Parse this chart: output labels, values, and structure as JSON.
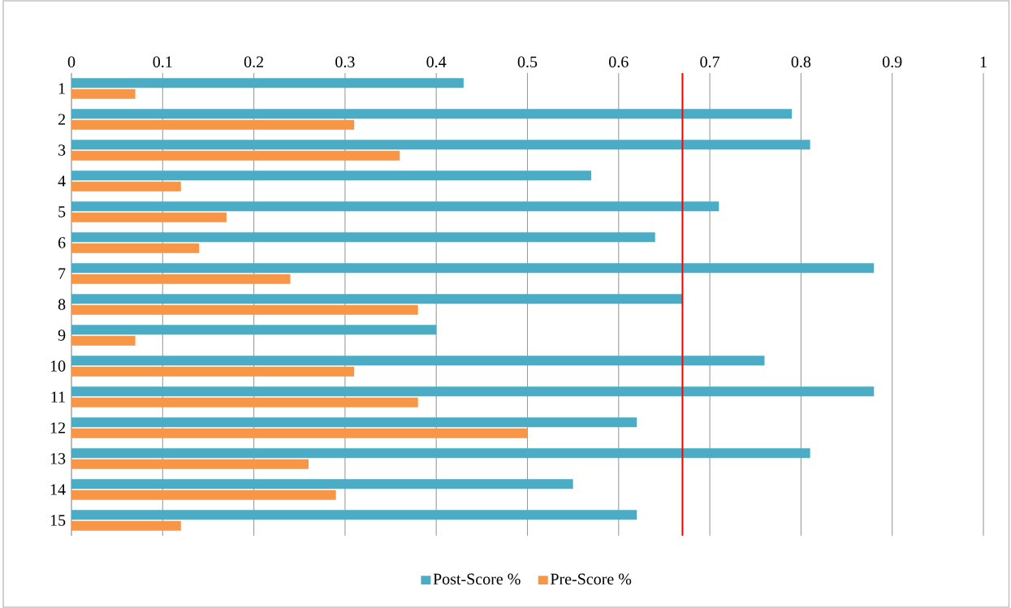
{
  "chart_data": {
    "type": "bar",
    "orientation": "horizontal",
    "categories": [
      "1",
      "2",
      "3",
      "4",
      "5",
      "6",
      "7",
      "8",
      "9",
      "10",
      "11",
      "12",
      "13",
      "14",
      "15"
    ],
    "series": [
      {
        "name": "Post-Score %",
        "color": "#4bacc6",
        "values": [
          0.43,
          0.79,
          0.81,
          0.57,
          0.71,
          0.64,
          0.88,
          0.67,
          0.4,
          0.76,
          0.88,
          0.62,
          0.81,
          0.55,
          0.62
        ]
      },
      {
        "name": "Pre-Score %",
        "color": "#f79646",
        "values": [
          0.07,
          0.31,
          0.36,
          0.12,
          0.17,
          0.14,
          0.24,
          0.38,
          0.07,
          0.31,
          0.38,
          0.5,
          0.26,
          0.29,
          0.12
        ]
      }
    ],
    "xlim": [
      0,
      1
    ],
    "xticks": [
      0,
      0.1,
      0.2,
      0.3,
      0.4,
      0.5,
      0.6,
      0.7,
      0.8,
      0.9,
      1
    ],
    "ref_lines": [
      {
        "axis": "x",
        "value": 0.67,
        "color": "#ff0000"
      }
    ],
    "grid": "x",
    "legend": "bottom"
  }
}
